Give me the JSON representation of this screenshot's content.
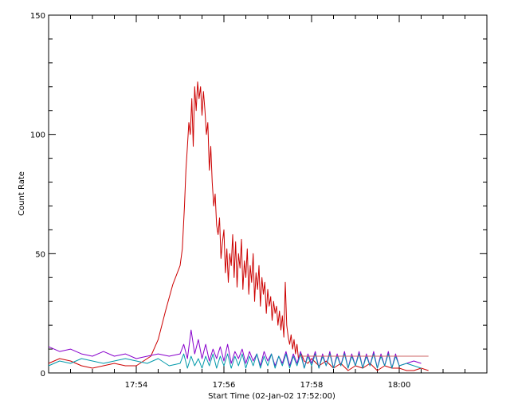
{
  "chart_data": {
    "type": "line",
    "title": "",
    "xlabel": "Start Time (02-Jan-02 17:52:00)",
    "ylabel": "Count Rate",
    "x_unit": "time (HH:MM)",
    "xlim": [
      "17:52:00",
      "18:02:00"
    ],
    "ylim": [
      0,
      150
    ],
    "x_ticks": [
      "17:54",
      "17:56",
      "17:58",
      "18:00"
    ],
    "y_ticks": [
      "0",
      "50",
      "100",
      "150"
    ],
    "grid": false,
    "legend": "none",
    "series": [
      {
        "color": "#cc0000",
        "points": [
          [
            "17:52:00",
            4
          ],
          [
            "17:52:15",
            6
          ],
          [
            "17:52:30",
            5
          ],
          [
            "17:52:45",
            3
          ],
          [
            "17:53:00",
            2
          ],
          [
            "17:53:15",
            3
          ],
          [
            "17:53:30",
            4
          ],
          [
            "17:53:45",
            3
          ],
          [
            "17:54:00",
            3
          ],
          [
            "17:54:10",
            5
          ],
          [
            "17:54:20",
            7
          ],
          [
            "17:54:30",
            14
          ],
          [
            "17:54:40",
            26
          ],
          [
            "17:54:50",
            37
          ],
          [
            "17:55:00",
            45
          ],
          [
            "17:55:03",
            52
          ],
          [
            "17:55:06",
            70
          ],
          [
            "17:55:08",
            85
          ],
          [
            "17:55:10",
            95
          ],
          [
            "17:55:12",
            105
          ],
          [
            "17:55:14",
            100
          ],
          [
            "17:55:16",
            115
          ],
          [
            "17:55:18",
            95
          ],
          [
            "17:55:20",
            120
          ],
          [
            "17:55:22",
            110
          ],
          [
            "17:55:24",
            122
          ],
          [
            "17:55:26",
            115
          ],
          [
            "17:55:28",
            120
          ],
          [
            "17:55:30",
            108
          ],
          [
            "17:55:32",
            118
          ],
          [
            "17:55:34",
            110
          ],
          [
            "17:55:36",
            100
          ],
          [
            "17:55:38",
            105
          ],
          [
            "17:55:40",
            85
          ],
          [
            "17:55:42",
            95
          ],
          [
            "17:55:44",
            80
          ],
          [
            "17:55:46",
            70
          ],
          [
            "17:55:48",
            75
          ],
          [
            "17:55:50",
            62
          ],
          [
            "17:55:52",
            58
          ],
          [
            "17:55:54",
            65
          ],
          [
            "17:55:56",
            48
          ],
          [
            "17:55:58",
            55
          ],
          [
            "17:56:00",
            60
          ],
          [
            "17:56:02",
            42
          ],
          [
            "17:56:04",
            52
          ],
          [
            "17:56:06",
            38
          ],
          [
            "17:56:08",
            50
          ],
          [
            "17:56:10",
            45
          ],
          [
            "17:56:12",
            58
          ],
          [
            "17:56:14",
            40
          ],
          [
            "17:56:16",
            55
          ],
          [
            "17:56:18",
            36
          ],
          [
            "17:56:20",
            50
          ],
          [
            "17:56:22",
            44
          ],
          [
            "17:56:24",
            56
          ],
          [
            "17:56:26",
            35
          ],
          [
            "17:56:28",
            47
          ],
          [
            "17:56:30",
            40
          ],
          [
            "17:56:32",
            52
          ],
          [
            "17:56:34",
            33
          ],
          [
            "17:56:36",
            45
          ],
          [
            "17:56:38",
            38
          ],
          [
            "17:56:40",
            50
          ],
          [
            "17:56:42",
            30
          ],
          [
            "17:56:44",
            42
          ],
          [
            "17:56:46",
            35
          ],
          [
            "17:56:48",
            45
          ],
          [
            "17:56:50",
            28
          ],
          [
            "17:56:52",
            40
          ],
          [
            "17:56:54",
            33
          ],
          [
            "17:56:56",
            38
          ],
          [
            "17:56:58",
            25
          ],
          [
            "17:57:00",
            35
          ],
          [
            "17:57:02",
            28
          ],
          [
            "17:57:04",
            32
          ],
          [
            "17:57:06",
            22
          ],
          [
            "17:57:08",
            30
          ],
          [
            "17:57:10",
            25
          ],
          [
            "17:57:12",
            28
          ],
          [
            "17:57:14",
            20
          ],
          [
            "17:57:16",
            26
          ],
          [
            "17:57:18",
            18
          ],
          [
            "17:57:20",
            24
          ],
          [
            "17:57:22",
            15
          ],
          [
            "17:57:24",
            38
          ],
          [
            "17:57:26",
            20
          ],
          [
            "17:57:28",
            15
          ],
          [
            "17:57:30",
            12
          ],
          [
            "17:57:32",
            16
          ],
          [
            "17:57:34",
            10
          ],
          [
            "17:57:36",
            14
          ],
          [
            "17:57:38",
            8
          ],
          [
            "17:57:40",
            12
          ],
          [
            "17:57:42",
            6
          ],
          [
            "17:57:46",
            8
          ],
          [
            "17:57:50",
            5
          ],
          [
            "17:57:55",
            4
          ],
          [
            "17:58:00",
            6
          ],
          [
            "17:58:10",
            3
          ],
          [
            "17:58:20",
            5
          ],
          [
            "17:58:30",
            2
          ],
          [
            "17:58:40",
            4
          ],
          [
            "17:58:50",
            1
          ],
          [
            "17:59:00",
            3
          ],
          [
            "17:59:10",
            2
          ],
          [
            "17:59:20",
            4
          ],
          [
            "17:59:30",
            1
          ],
          [
            "17:59:40",
            3
          ],
          [
            "17:59:50",
            2
          ],
          [
            "18:00:00",
            2
          ],
          [
            "18:00:10",
            1
          ],
          [
            "18:00:20",
            1
          ],
          [
            "18:00:30",
            2
          ],
          [
            "18:00:40",
            1
          ]
        ]
      },
      {
        "color": "#8800cc",
        "points": [
          [
            "17:52:00",
            11
          ],
          [
            "17:52:15",
            9
          ],
          [
            "17:52:30",
            10
          ],
          [
            "17:52:45",
            8
          ],
          [
            "17:53:00",
            7
          ],
          [
            "17:53:15",
            9
          ],
          [
            "17:53:30",
            7
          ],
          [
            "17:53:45",
            8
          ],
          [
            "17:54:00",
            6
          ],
          [
            "17:54:15",
            7
          ],
          [
            "17:54:30",
            8
          ],
          [
            "17:54:45",
            7
          ],
          [
            "17:55:00",
            8
          ],
          [
            "17:55:05",
            12
          ],
          [
            "17:55:10",
            6
          ],
          [
            "17:55:15",
            18
          ],
          [
            "17:55:20",
            8
          ],
          [
            "17:55:25",
            14
          ],
          [
            "17:55:30",
            6
          ],
          [
            "17:55:35",
            12
          ],
          [
            "17:55:40",
            5
          ],
          [
            "17:55:45",
            10
          ],
          [
            "17:55:50",
            6
          ],
          [
            "17:55:55",
            11
          ],
          [
            "17:56:00",
            5
          ],
          [
            "17:56:05",
            12
          ],
          [
            "17:56:10",
            4
          ],
          [
            "17:56:15",
            9
          ],
          [
            "17:56:20",
            6
          ],
          [
            "17:56:25",
            10
          ],
          [
            "17:56:30",
            4
          ],
          [
            "17:56:35",
            9
          ],
          [
            "17:56:40",
            5
          ],
          [
            "17:56:45",
            8
          ],
          [
            "17:56:50",
            3
          ],
          [
            "17:56:55",
            9
          ],
          [
            "17:57:00",
            5
          ],
          [
            "17:57:05",
            8
          ],
          [
            "17:57:10",
            3
          ],
          [
            "17:57:15",
            7
          ],
          [
            "17:57:20",
            4
          ],
          [
            "17:57:25",
            9
          ],
          [
            "17:57:30",
            3
          ],
          [
            "17:57:35",
            8
          ],
          [
            "17:57:40",
            4
          ],
          [
            "17:57:45",
            9
          ],
          [
            "17:57:50",
            2
          ],
          [
            "17:57:55",
            8
          ],
          [
            "17:58:00",
            4
          ],
          [
            "17:58:05",
            9
          ],
          [
            "17:58:10",
            2
          ],
          [
            "17:58:15",
            8
          ],
          [
            "17:58:20",
            3
          ],
          [
            "17:58:25",
            9
          ],
          [
            "17:58:30",
            2
          ],
          [
            "17:58:35",
            8
          ],
          [
            "17:58:40",
            3
          ],
          [
            "17:58:45",
            9
          ],
          [
            "17:58:50",
            2
          ],
          [
            "17:58:55",
            8
          ],
          [
            "17:59:00",
            3
          ],
          [
            "17:59:05",
            9
          ],
          [
            "17:59:10",
            2
          ],
          [
            "17:59:15",
            8
          ],
          [
            "17:59:20",
            3
          ],
          [
            "17:59:25",
            9
          ],
          [
            "17:59:30",
            2
          ],
          [
            "17:59:35",
            8
          ],
          [
            "17:59:40",
            3
          ],
          [
            "17:59:45",
            9
          ],
          [
            "17:59:50",
            2
          ],
          [
            "17:59:55",
            8
          ],
          [
            "18:00:00",
            3
          ],
          [
            "18:00:10",
            4
          ],
          [
            "18:00:20",
            5
          ],
          [
            "18:00:30",
            4
          ]
        ]
      },
      {
        "color": "#0099aa",
        "points": [
          [
            "17:52:00",
            3
          ],
          [
            "17:52:15",
            5
          ],
          [
            "17:52:30",
            4
          ],
          [
            "17:52:45",
            6
          ],
          [
            "17:53:00",
            5
          ],
          [
            "17:53:15",
            4
          ],
          [
            "17:53:30",
            5
          ],
          [
            "17:53:45",
            6
          ],
          [
            "17:54:00",
            5
          ],
          [
            "17:54:15",
            4
          ],
          [
            "17:54:30",
            6
          ],
          [
            "17:54:45",
            3
          ],
          [
            "17:55:00",
            4
          ],
          [
            "17:55:05",
            8
          ],
          [
            "17:55:10",
            2
          ],
          [
            "17:55:15",
            7
          ],
          [
            "17:55:20",
            3
          ],
          [
            "17:55:25",
            6
          ],
          [
            "17:55:30",
            2
          ],
          [
            "17:55:35",
            7
          ],
          [
            "17:55:40",
            3
          ],
          [
            "17:55:45",
            8
          ],
          [
            "17:55:50",
            2
          ],
          [
            "17:55:55",
            7
          ],
          [
            "17:56:00",
            3
          ],
          [
            "17:56:05",
            8
          ],
          [
            "17:56:10",
            2
          ],
          [
            "17:56:15",
            7
          ],
          [
            "17:56:20",
            3
          ],
          [
            "17:56:25",
            8
          ],
          [
            "17:56:30",
            2
          ],
          [
            "17:56:35",
            7
          ],
          [
            "17:56:40",
            3
          ],
          [
            "17:56:45",
            8
          ],
          [
            "17:56:50",
            2
          ],
          [
            "17:56:55",
            7
          ],
          [
            "17:57:00",
            3
          ],
          [
            "17:57:05",
            8
          ],
          [
            "17:57:10",
            2
          ],
          [
            "17:57:15",
            7
          ],
          [
            "17:57:20",
            3
          ],
          [
            "17:57:25",
            8
          ],
          [
            "17:57:30",
            2
          ],
          [
            "17:57:35",
            7
          ],
          [
            "17:57:40",
            3
          ],
          [
            "17:57:45",
            8
          ],
          [
            "17:57:50",
            2
          ],
          [
            "17:57:55",
            7
          ],
          [
            "17:58:00",
            3
          ],
          [
            "17:58:05",
            8
          ],
          [
            "17:58:10",
            2
          ],
          [
            "17:58:15",
            7
          ],
          [
            "17:58:20",
            3
          ],
          [
            "17:58:25",
            8
          ],
          [
            "17:58:30",
            2
          ],
          [
            "17:58:35",
            7
          ],
          [
            "17:58:40",
            3
          ],
          [
            "17:58:45",
            8
          ],
          [
            "17:58:50",
            2
          ],
          [
            "17:58:55",
            7
          ],
          [
            "17:59:00",
            3
          ],
          [
            "17:59:05",
            8
          ],
          [
            "17:59:10",
            2
          ],
          [
            "17:59:15",
            7
          ],
          [
            "17:59:20",
            3
          ],
          [
            "17:59:25",
            8
          ],
          [
            "17:59:30",
            2
          ],
          [
            "17:59:35",
            7
          ],
          [
            "17:59:40",
            3
          ],
          [
            "17:59:45",
            8
          ],
          [
            "17:59:50",
            2
          ],
          [
            "17:59:55",
            7
          ],
          [
            "18:00:00",
            3
          ],
          [
            "18:00:10",
            4
          ],
          [
            "18:00:20",
            3
          ],
          [
            "18:00:30",
            2
          ]
        ]
      },
      {
        "color": "#cc6666",
        "points": [
          [
            "17:57:42",
            7
          ],
          [
            "18:00:40",
            7
          ]
        ]
      }
    ]
  }
}
